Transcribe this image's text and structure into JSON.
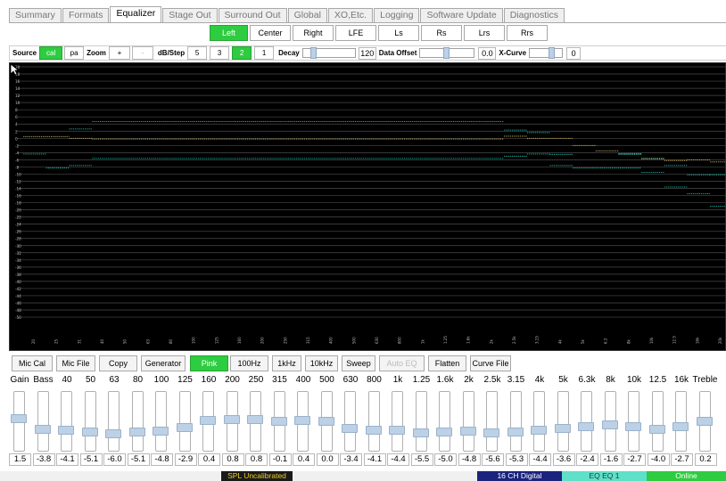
{
  "tabs": [
    {
      "label": "Summary",
      "active": false
    },
    {
      "label": "Formats",
      "active": false
    },
    {
      "label": "Equalizer",
      "active": true
    },
    {
      "label": "Stage Out",
      "active": false
    },
    {
      "label": "Surround Out",
      "active": false
    },
    {
      "label": "Global",
      "active": false
    },
    {
      "label": "XO,Etc.",
      "active": false
    },
    {
      "label": "Logging",
      "active": false
    },
    {
      "label": "Software Update",
      "active": false
    },
    {
      "label": "Diagnostics",
      "active": false
    }
  ],
  "channels": [
    {
      "label": "Left",
      "active": true
    },
    {
      "label": "Center",
      "active": false
    },
    {
      "label": "Right",
      "active": false
    },
    {
      "label": "LFE",
      "active": false
    },
    {
      "label": "Ls",
      "active": false
    },
    {
      "label": "Rs",
      "active": false
    },
    {
      "label": "Lrs",
      "active": false
    },
    {
      "label": "Rrs",
      "active": false
    }
  ],
  "controls": {
    "source_label": "Source",
    "source_options": [
      {
        "label": "cal",
        "active": true
      },
      {
        "label": "pa",
        "active": false
      }
    ],
    "zoom_label": "Zoom",
    "zoom_in": "+",
    "zoom_out": "-",
    "dbstep_label": "dB/Step",
    "dbstep_options": [
      {
        "label": "5",
        "active": false
      },
      {
        "label": "3",
        "active": false
      },
      {
        "label": "2",
        "active": true
      },
      {
        "label": "1",
        "active": false
      }
    ],
    "decay_label": "Decay",
    "decay_value": "120",
    "decay_level": 0.15,
    "data_offset_label": "Data Offset",
    "data_offset_value": "0.0",
    "data_offset_level": 0.5,
    "xcurve_label": "X-Curve",
    "xcurve_value": "0",
    "xcurve_level": 0.75
  },
  "graph": {
    "y_ticks": [
      "20",
      "18",
      "16",
      "14",
      "12",
      "10",
      "8",
      "6",
      "4",
      "2",
      "0",
      "-2",
      "-4",
      "-6",
      "-8",
      "-10",
      "-12",
      "-14",
      "-16",
      "-18",
      "-20",
      "-22",
      "-24",
      "-26",
      "-28",
      "-30",
      "-32",
      "-34",
      "-36",
      "-38",
      "-40",
      "-42",
      "-44",
      "-46",
      "-48",
      "-50"
    ],
    "x_ticks": [
      "20",
      "25",
      "31",
      "40",
      "50",
      "63",
      "80",
      "100",
      "125",
      "160",
      "200",
      "250",
      "315",
      "400",
      "500",
      "630",
      "800",
      "1k",
      "1.25",
      "1.6k",
      "2k",
      "2.5k",
      "3.15",
      "4k",
      "5k",
      "6.3",
      "8k",
      "10k",
      "12.5",
      "16k",
      "20k"
    ],
    "colors": {
      "background": "#000000",
      "gridline": "#4a4a4a",
      "trace_green": "#22c0b0",
      "trace_yellow": "#d8c060",
      "axis_text": "#bbbbbb"
    }
  },
  "buttons": [
    {
      "label": "Mic Cal",
      "active": false,
      "disabled": false
    },
    {
      "label": "Mic File",
      "active": false,
      "disabled": false
    },
    {
      "label": "Copy",
      "active": false,
      "disabled": false
    },
    {
      "label": "Generator",
      "active": false,
      "disabled": false
    },
    {
      "label": "Pink",
      "active": true,
      "disabled": false
    },
    {
      "label": "100Hz",
      "active": false,
      "disabled": false
    },
    {
      "label": "1kHz",
      "active": false,
      "disabled": false
    },
    {
      "label": "10kHz",
      "active": false,
      "disabled": false
    },
    {
      "label": "Sweep",
      "active": false,
      "disabled": false
    },
    {
      "label": "Auto EQ",
      "active": false,
      "disabled": true
    },
    {
      "label": "Flatten",
      "active": false,
      "disabled": false
    },
    {
      "label": "Curve File",
      "active": false,
      "disabled": false
    }
  ],
  "bands": [
    {
      "label": "Gain",
      "value": "1.5"
    },
    {
      "label": "Bass",
      "value": "-3.8"
    },
    {
      "label": "40",
      "value": "-4.1"
    },
    {
      "label": "50",
      "value": "-5.1"
    },
    {
      "label": "63",
      "value": "-6.0"
    },
    {
      "label": "80",
      "value": "-5.1"
    },
    {
      "label": "100",
      "value": "-4.8"
    },
    {
      "label": "125",
      "value": "-2.9"
    },
    {
      "label": "160",
      "value": "0.4"
    },
    {
      "label": "200",
      "value": "0.8"
    },
    {
      "label": "250",
      "value": "0.8"
    },
    {
      "label": "315",
      "value": "-0.1"
    },
    {
      "label": "400",
      "value": "0.4"
    },
    {
      "label": "500",
      "value": "0.0"
    },
    {
      "label": "630",
      "value": "-3.4"
    },
    {
      "label": "800",
      "value": "-4.1"
    },
    {
      "label": "1k",
      "value": "-4.4"
    },
    {
      "label": "1.25",
      "value": "-5.5"
    },
    {
      "label": "1.6k",
      "value": "-5.0"
    },
    {
      "label": "2k",
      "value": "-4.8"
    },
    {
      "label": "2.5k",
      "value": "-5.6"
    },
    {
      "label": "3.15",
      "value": "-5.3"
    },
    {
      "label": "4k",
      "value": "-4.4"
    },
    {
      "label": "5k",
      "value": "-3.6"
    },
    {
      "label": "6.3k",
      "value": "-2.4"
    },
    {
      "label": "8k",
      "value": "-1.6"
    },
    {
      "label": "10k",
      "value": "-2.7"
    },
    {
      "label": "12.5",
      "value": "-4.0"
    },
    {
      "label": "16k",
      "value": "-2.7"
    },
    {
      "label": "Treble",
      "value": "0.2"
    }
  ],
  "status": {
    "spl": "SPL Uncalibrated",
    "format": "16 CH Digital",
    "eq": "EQ EQ 1",
    "connection": "Online",
    "colors": {
      "spl_bg": "#1a1a1a",
      "spl_fg": "#f0d020",
      "format_bg": "#1a237e",
      "eq_bg": "#5fe0c8",
      "online_bg": "#2ecc40"
    }
  }
}
